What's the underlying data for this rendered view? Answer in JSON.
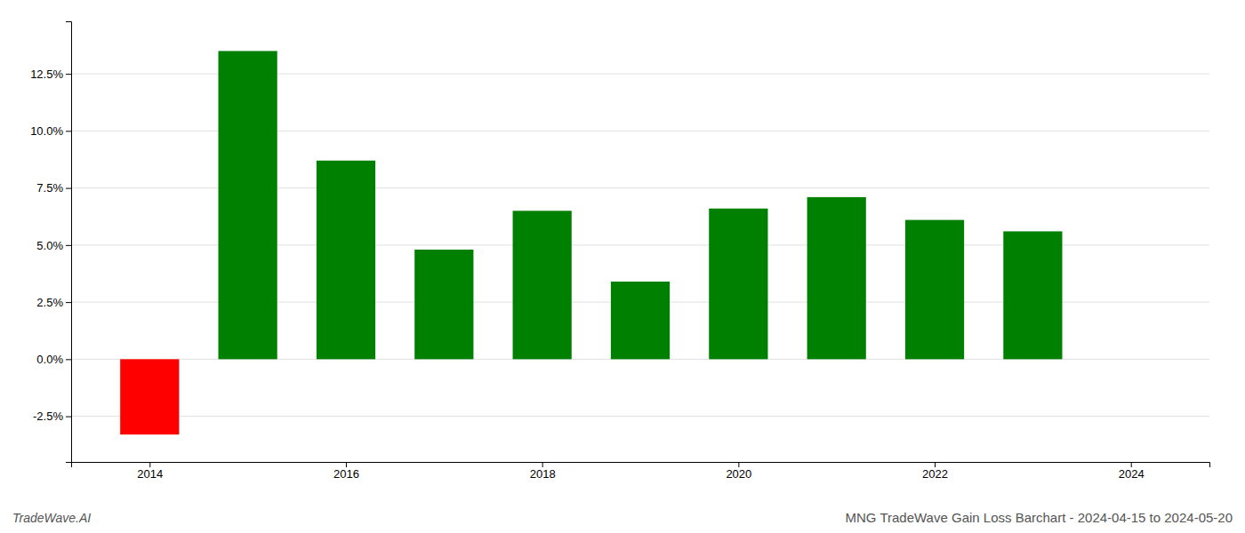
{
  "chart_data": {
    "type": "bar",
    "title": "MNG TradeWave Gain Loss Barchart - 2024-04-15 to 2024-05-20",
    "annotations": [
      "TradeWave.AI"
    ],
    "x": [
      2014,
      2015,
      2016,
      2017,
      2018,
      2019,
      2020,
      2021,
      2022,
      2023
    ],
    "values": [
      -0.033,
      0.135,
      0.087,
      0.048,
      0.065,
      0.034,
      0.066,
      0.071,
      0.061,
      0.056
    ],
    "colors": [
      "#ff0000",
      "#008000",
      "#008000",
      "#008000",
      "#008000",
      "#008000",
      "#008000",
      "#008000",
      "#008000",
      "#008000"
    ],
    "xlim": [
      2013.2,
      2024.8
    ],
    "xticks": [
      2014,
      2016,
      2018,
      2020,
      2022,
      2024
    ],
    "ylim": [
      -0.045,
      0.148
    ],
    "yticks": [
      {
        "value": -0.025,
        "label": "-2.5%"
      },
      {
        "value": 0.0,
        "label": "0.0%"
      },
      {
        "value": 0.025,
        "label": "2.5%"
      },
      {
        "value": 0.05,
        "label": "5.0%"
      },
      {
        "value": 0.075,
        "label": "7.5%"
      },
      {
        "value": 0.1,
        "label": "10.0%"
      },
      {
        "value": 0.125,
        "label": "12.5%"
      }
    ],
    "grid": true
  }
}
